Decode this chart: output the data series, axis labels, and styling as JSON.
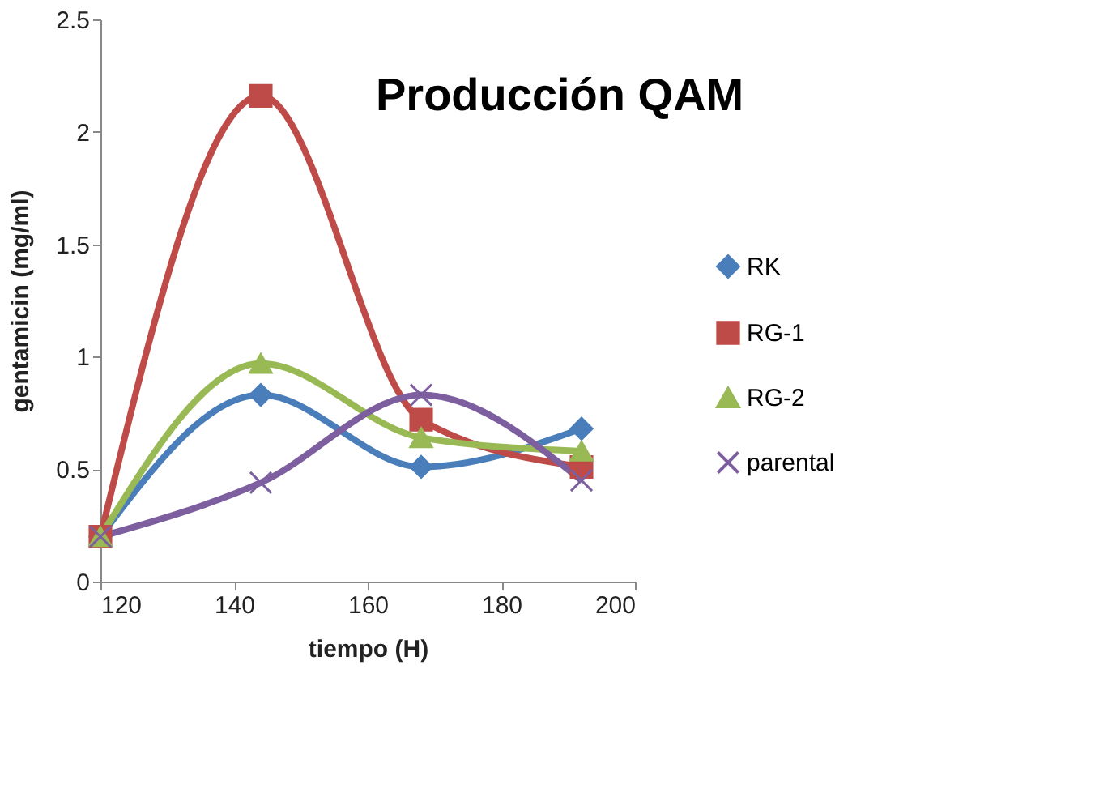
{
  "chart_data": {
    "type": "line",
    "title": "Producción QAM",
    "xlabel": "tiempo (H)",
    "ylabel": "gentamicin  (mg/ml)",
    "x": [
      120,
      144,
      168,
      192
    ],
    "series": [
      {
        "name": "RK",
        "color": "#4a7ebb",
        "marker": "diamond",
        "values": [
          0.2,
          0.83,
          0.51,
          0.68
        ]
      },
      {
        "name": "RG-1",
        "color": "#be4b48",
        "marker": "square",
        "values": [
          0.2,
          2.16,
          0.72,
          0.51
        ]
      },
      {
        "name": "RG-2",
        "color": "#98b954",
        "marker": "triangle",
        "values": [
          0.2,
          0.97,
          0.64,
          0.58
        ]
      },
      {
        "name": "parental",
        "color": "#7d5fa0",
        "marker": "cross",
        "values": [
          0.2,
          0.44,
          0.83,
          0.45
        ]
      }
    ],
    "xlim": [
      120,
      200
    ],
    "xticks": [
      120,
      140,
      160,
      180,
      200
    ],
    "ylim": [
      0,
      2.5
    ],
    "yticks": [
      0,
      0.5,
      1,
      1.5,
      2,
      2.5
    ],
    "grid": false,
    "legend": "right",
    "line_style": "solid"
  }
}
